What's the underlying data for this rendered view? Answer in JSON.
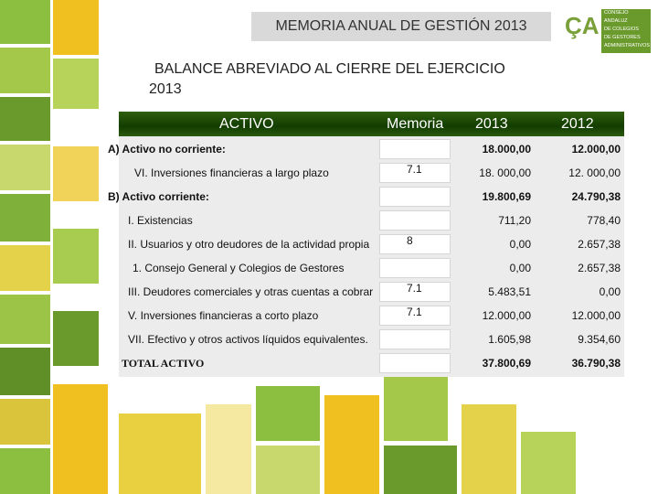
{
  "header": {
    "title": "MEMORIA ANUAL DE GESTIÓN 2013",
    "logo": {
      "mark": "ÇA",
      "text": [
        "CONSEJO",
        "ANDALUZ",
        "DE COLEGIOS",
        "DE GESTORES",
        "ADMINISTRATIVOS"
      ]
    }
  },
  "subtitle": [
    "BALANCE ABREVIADO AL CIERRE DEL EJERCICIO",
    "2013"
  ],
  "table": {
    "columns": [
      "ACTIVO",
      "Memoria",
      "2013",
      "2012"
    ],
    "rows": [
      [
        "A) Activo no corriente:",
        null,
        "18.000,00",
        "12.000,00"
      ],
      [
        "VI. Inversiones financieras a largo plazo",
        "7.1",
        "18. 000,00",
        "12. 000,00"
      ],
      [
        "B) Activo corriente:",
        null,
        "19.800,69",
        "24.790,38"
      ],
      [
        "I. Existencias",
        null,
        "711,20",
        "778,40"
      ],
      [
        "II. Usuarios y otro deudores de la actividad propia",
        "8",
        "0,00",
        "2.657,38"
      ],
      [
        "1. Consejo General y Colegios de Gestores",
        null,
        "0,00",
        "2.657,38"
      ],
      [
        "III. Deudores comerciales y otras cuentas a cobrar",
        "7.1",
        "5.483,51",
        "0,00"
      ],
      [
        "V. Inversiones financieras a corto plazo",
        "7.1",
        "12.000,00",
        "12.000,00"
      ],
      [
        "VII. Efectivo y otros activos líquidos equivalentes.",
        null,
        "1.605,98",
        "9.354,60"
      ],
      [
        "TOTAL ACTIVO",
        null,
        "37.800,69",
        "36.790,38"
      ]
    ]
  }
}
